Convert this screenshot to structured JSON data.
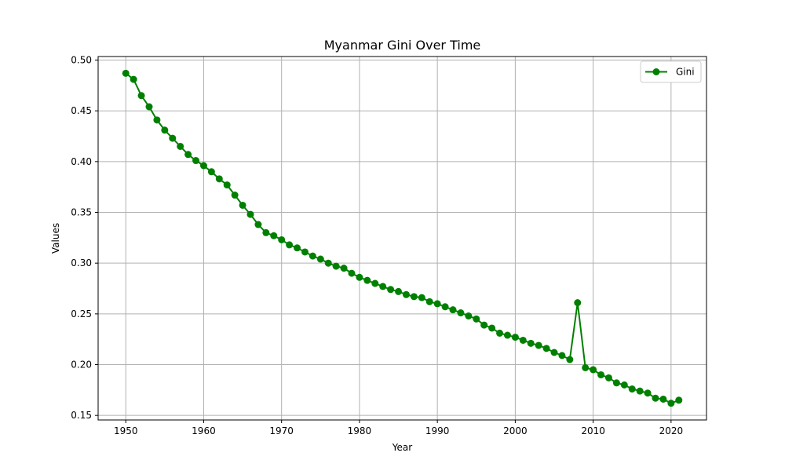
{
  "chart_data": {
    "type": "line",
    "title": "Myanmar Gini Over Time",
    "xlabel": "Year",
    "ylabel": "Values",
    "xlim": [
      1946.45,
      2024.55
    ],
    "ylim": [
      0.1455,
      0.5035
    ],
    "xticks": [
      1950,
      1960,
      1970,
      1980,
      1990,
      2000,
      2010,
      2020
    ],
    "yticks": [
      0.15,
      0.2,
      0.25,
      0.3,
      0.35,
      0.4,
      0.45,
      0.5
    ],
    "ytick_labels": [
      "0.15",
      "0.20",
      "0.25",
      "0.30",
      "0.35",
      "0.40",
      "0.45",
      "0.50"
    ],
    "grid": true,
    "legend_position": "top-right",
    "colors": {
      "series": "#008000",
      "grid": "#b0b0b0"
    },
    "series": [
      {
        "name": "Gini",
        "x": [
          1950,
          1951,
          1952,
          1953,
          1954,
          1955,
          1956,
          1957,
          1958,
          1959,
          1960,
          1961,
          1962,
          1963,
          1964,
          1965,
          1966,
          1967,
          1968,
          1969,
          1970,
          1971,
          1972,
          1973,
          1974,
          1975,
          1976,
          1977,
          1978,
          1979,
          1980,
          1981,
          1982,
          1983,
          1984,
          1985,
          1986,
          1987,
          1988,
          1989,
          1990,
          1991,
          1992,
          1993,
          1994,
          1995,
          1996,
          1997,
          1998,
          1999,
          2000,
          2001,
          2002,
          2003,
          2004,
          2005,
          2006,
          2007,
          2008,
          2009,
          2010,
          2011,
          2012,
          2013,
          2014,
          2015,
          2016,
          2017,
          2018,
          2019,
          2020,
          2021
        ],
        "values": [
          0.487,
          0.481,
          0.465,
          0.454,
          0.441,
          0.431,
          0.423,
          0.415,
          0.407,
          0.401,
          0.396,
          0.39,
          0.383,
          0.377,
          0.367,
          0.357,
          0.348,
          0.338,
          0.33,
          0.327,
          0.323,
          0.318,
          0.315,
          0.311,
          0.307,
          0.304,
          0.3,
          0.297,
          0.295,
          0.29,
          0.286,
          0.283,
          0.28,
          0.277,
          0.274,
          0.272,
          0.269,
          0.267,
          0.266,
          0.262,
          0.26,
          0.257,
          0.254,
          0.251,
          0.248,
          0.245,
          0.239,
          0.236,
          0.231,
          0.229,
          0.227,
          0.224,
          0.221,
          0.219,
          0.216,
          0.212,
          0.209,
          0.205,
          0.261,
          0.197,
          0.195,
          0.19,
          0.187,
          0.182,
          0.18,
          0.176,
          0.174,
          0.172,
          0.167,
          0.166,
          0.162,
          0.165
        ]
      }
    ]
  }
}
